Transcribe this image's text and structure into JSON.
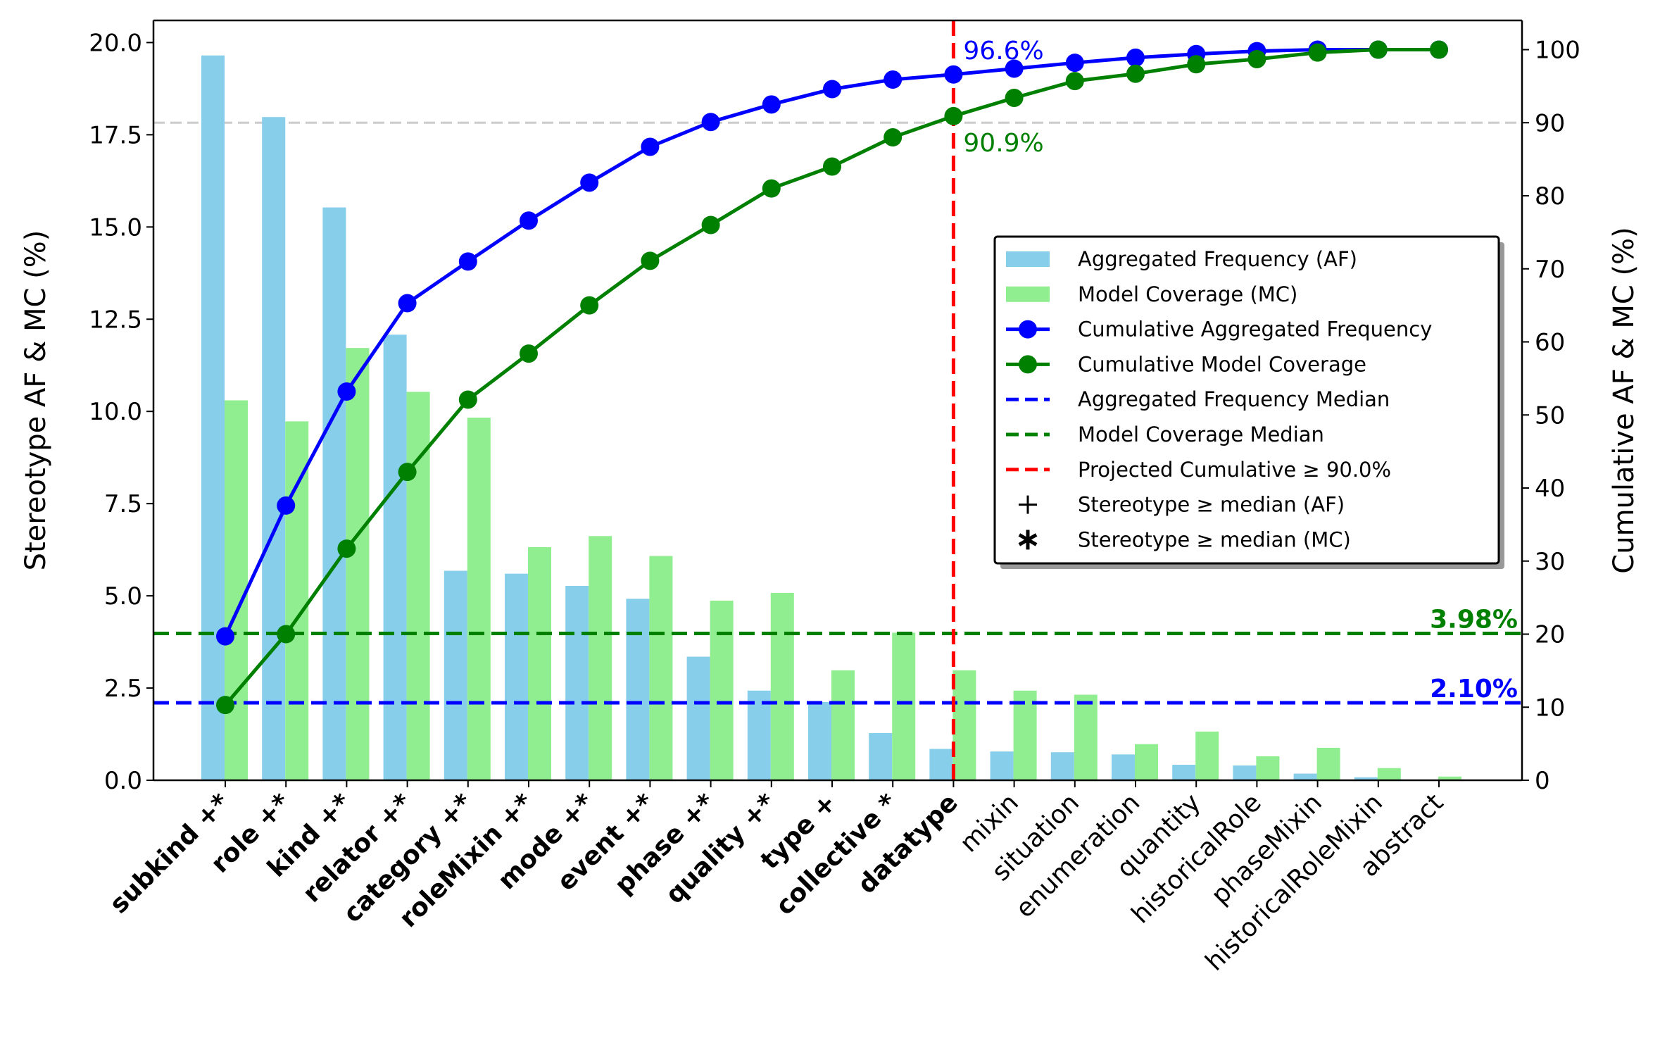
{
  "chart_data": {
    "type": "bar",
    "categories": [
      {
        "label": "subkind +*",
        "bold": true
      },
      {
        "label": "role +*",
        "bold": true
      },
      {
        "label": "kind +*",
        "bold": true
      },
      {
        "label": "relator +*",
        "bold": true
      },
      {
        "label": "category +*",
        "bold": true
      },
      {
        "label": "roleMixin +*",
        "bold": true
      },
      {
        "label": "mode +*",
        "bold": true
      },
      {
        "label": "event +*",
        "bold": true
      },
      {
        "label": "phase +*",
        "bold": true
      },
      {
        "label": "quality +*",
        "bold": true
      },
      {
        "label": "type +",
        "bold": true
      },
      {
        "label": "collective *",
        "bold": true
      },
      {
        "label": "datatype",
        "bold": true
      },
      {
        "label": "mixin",
        "bold": false
      },
      {
        "label": "situation",
        "bold": false
      },
      {
        "label": "enumeration",
        "bold": false
      },
      {
        "label": "quantity",
        "bold": false
      },
      {
        "label": "historicalRole",
        "bold": false
      },
      {
        "label": "phaseMixin",
        "bold": false
      },
      {
        "label": "historicalRoleMixin",
        "bold": false
      },
      {
        "label": "abstract",
        "bold": false
      }
    ],
    "series": [
      {
        "name": "Aggregated Frequency (AF)",
        "kind": "bar",
        "axis": "left",
        "color": "#87ceeb",
        "values": [
          19.65,
          17.98,
          15.53,
          12.08,
          5.68,
          5.6,
          5.27,
          4.92,
          3.35,
          2.43,
          2.12,
          1.28,
          0.85,
          0.78,
          0.76,
          0.7,
          0.42,
          0.4,
          0.18,
          0.08,
          0.0
        ]
      },
      {
        "name": "Model Coverage (MC)",
        "kind": "bar",
        "axis": "left",
        "color": "#90ee90",
        "values": [
          10.3,
          9.73,
          11.72,
          10.53,
          9.83,
          6.32,
          6.62,
          6.08,
          4.87,
          5.08,
          2.98,
          4.0,
          2.98,
          2.43,
          2.32,
          0.98,
          1.32,
          0.65,
          0.88,
          0.33,
          0.1
        ]
      },
      {
        "name": "Cumulative Aggregated Frequency",
        "kind": "line",
        "axis": "right",
        "color": "#0000ff",
        "values": [
          19.7,
          37.6,
          53.2,
          65.3,
          71.0,
          76.6,
          81.8,
          86.7,
          90.1,
          92.5,
          94.6,
          95.9,
          96.6,
          97.4,
          98.2,
          98.9,
          99.4,
          99.8,
          100.0,
          100.0,
          100.0
        ]
      },
      {
        "name": "Cumulative Model Coverage",
        "kind": "line",
        "axis": "right",
        "color": "#008000",
        "values": [
          10.3,
          20.0,
          31.7,
          42.2,
          52.1,
          58.4,
          65.0,
          71.1,
          76.0,
          81.0,
          84.0,
          88.0,
          90.9,
          93.4,
          95.7,
          96.7,
          98.0,
          98.7,
          99.6,
          100.0,
          100.0
        ]
      }
    ],
    "left_axis": {
      "label": "Stereotype AF & MC (%)",
      "ylim": [
        0,
        20.6
      ],
      "ticks": [
        "0.0",
        "2.5",
        "5.0",
        "7.5",
        "10.0",
        "12.5",
        "15.0",
        "17.5",
        "20.0"
      ],
      "tick_values": [
        0,
        2.5,
        5.0,
        7.5,
        10.0,
        12.5,
        15.0,
        17.5,
        20.0
      ]
    },
    "right_axis": {
      "label": "Cumulative AF & MC (%)",
      "ylim": [
        0,
        104
      ],
      "ticks": [
        "0",
        "10",
        "20",
        "30",
        "40",
        "50",
        "60",
        "70",
        "80",
        "90",
        "100"
      ],
      "tick_values": [
        0,
        10,
        20,
        30,
        40,
        50,
        60,
        70,
        80,
        90,
        100
      ]
    },
    "reference_lines": {
      "af_median": {
        "name": "Aggregated Frequency Median",
        "value": 2.1,
        "label": "2.10%",
        "color": "#0000ff"
      },
      "mc_median": {
        "name": "Model Coverage Median",
        "value": 3.98,
        "label": "3.98%",
        "color": "#008000"
      },
      "ninety_gridline": {
        "value": 90,
        "color": "#cccccc"
      },
      "projected": {
        "name": "Projected Cumulative ≥ 90.0%",
        "category_index": 12,
        "color": "#ff0000"
      }
    },
    "annotations": [
      {
        "text": "96.6%",
        "series": "Cumulative Aggregated Frequency",
        "category_index": 12,
        "color": "#0000ff"
      },
      {
        "text": "90.9%",
        "series": "Cumulative Model Coverage",
        "category_index": 12,
        "color": "#008000"
      }
    ],
    "legend": {
      "placement": "center-right",
      "entries": [
        {
          "label": "Aggregated Frequency (AF)",
          "symbol": "patch",
          "color": "#87ceeb"
        },
        {
          "label": "Model Coverage (MC)",
          "symbol": "patch",
          "color": "#90ee90"
        },
        {
          "label": "Cumulative Aggregated Frequency",
          "symbol": "line-marker",
          "color": "#0000ff"
        },
        {
          "label": "Cumulative Model Coverage",
          "symbol": "line-marker",
          "color": "#008000"
        },
        {
          "label": "Aggregated Frequency Median",
          "symbol": "dashed",
          "color": "#0000ff"
        },
        {
          "label": "Model Coverage Median",
          "symbol": "dashed",
          "color": "#008000"
        },
        {
          "label": "Projected Cumulative ≥ 90.0%",
          "symbol": "dashed",
          "color": "#ff0000"
        },
        {
          "label": "Stereotype ≥ median (AF)",
          "symbol": "plus",
          "color": "#000000"
        },
        {
          "label": "Stereotype ≥ median (MC)",
          "symbol": "star",
          "color": "#000000"
        }
      ]
    }
  }
}
